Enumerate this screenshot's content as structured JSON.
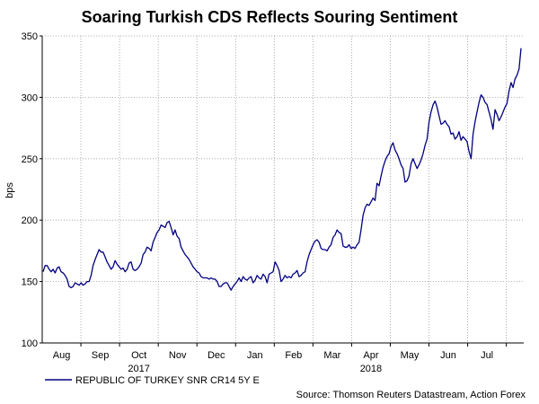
{
  "chart_data": {
    "type": "line",
    "title": "Soaring Turkish CDS Reflects Souring Sentiment",
    "ylabel": "bps",
    "xlabel": "",
    "ylim": [
      100,
      350
    ],
    "yticks": [
      100,
      150,
      200,
      250,
      300,
      350
    ],
    "month_ticks": [
      "Aug",
      "Sep",
      "Oct",
      "Nov",
      "Dec",
      "Jan",
      "Feb",
      "Mar",
      "Apr",
      "May",
      "Jun",
      "Jul"
    ],
    "year_labels": [
      {
        "label": "2017",
        "under_month": "Oct"
      },
      {
        "label": "2018",
        "under_month": "Apr"
      }
    ],
    "grid": true,
    "legend_position": "bottom-left",
    "series": [
      {
        "name": "REPUBLIC OF TURKEY SNR CR14 5Y E",
        "color": "#000080",
        "values": [
          158,
          163,
          163,
          160,
          158,
          160,
          157,
          161,
          162,
          158,
          157,
          155,
          152,
          146,
          145,
          146,
          149,
          148,
          147,
          149,
          147,
          148,
          150,
          150,
          155,
          163,
          168,
          172,
          176,
          174,
          174,
          170,
          166,
          163,
          160,
          162,
          167,
          164,
          162,
          160,
          161,
          158,
          160,
          165,
          166,
          160,
          159,
          160,
          162,
          165,
          172,
          174,
          178,
          177,
          175,
          182,
          186,
          190,
          192,
          196,
          195,
          194,
          198,
          199,
          194,
          188,
          192,
          187,
          185,
          178,
          175,
          172,
          170,
          168,
          165,
          162,
          160,
          158,
          157,
          154,
          153,
          153,
          153,
          152,
          153,
          152,
          152,
          150,
          146,
          146,
          148,
          149,
          149,
          146,
          143,
          146,
          148,
          150,
          153,
          150,
          154,
          152,
          151,
          153,
          154,
          149,
          151,
          155,
          153,
          152,
          156,
          154,
          149,
          156,
          157,
          158,
          166,
          163,
          159,
          150,
          152,
          155,
          153,
          154,
          153,
          156,
          157,
          159,
          154,
          155,
          157,
          158,
          166,
          172,
          176,
          180,
          183,
          184,
          182,
          177,
          176,
          176,
          175,
          178,
          180,
          186,
          188,
          192,
          190,
          189,
          179,
          178,
          178,
          180,
          177,
          178,
          177,
          180,
          182,
          192,
          204,
          210,
          213,
          212,
          215,
          218,
          216,
          230,
          228,
          236,
          243,
          248,
          252,
          254,
          260,
          263,
          257,
          254,
          250,
          245,
          242,
          231,
          232,
          236,
          246,
          250,
          246,
          242,
          245,
          249,
          254,
          261,
          266,
          280,
          288,
          294,
          297,
          292,
          285,
          278,
          279,
          281,
          278,
          276,
          270,
          271,
          266,
          268,
          272,
          265,
          268,
          266,
          264,
          256,
          250,
          270,
          280,
          288,
          296,
          302,
          300,
          296,
          294,
          288,
          282,
          274,
          290,
          286,
          281,
          284,
          288,
          292,
          295,
          305,
          312,
          308,
          315,
          318,
          323,
          340
        ]
      }
    ],
    "legend_label": "REPUBLIC OF TURKEY SNR CR14 5Y E",
    "source": "Source: Thomson Reuters Datastream, Action Forex"
  },
  "colors": {
    "series": "#000080",
    "grid": "#999999",
    "axis": "#000000"
  }
}
